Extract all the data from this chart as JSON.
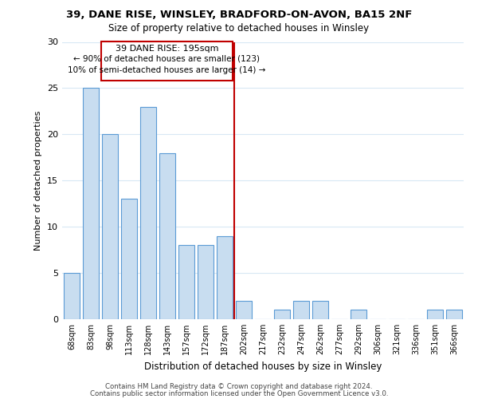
{
  "title1": "39, DANE RISE, WINSLEY, BRADFORD-ON-AVON, BA15 2NF",
  "title2": "Size of property relative to detached houses in Winsley",
  "xlabel": "Distribution of detached houses by size in Winsley",
  "ylabel": "Number of detached properties",
  "bar_labels": [
    "68sqm",
    "83sqm",
    "98sqm",
    "113sqm",
    "128sqm",
    "143sqm",
    "157sqm",
    "172sqm",
    "187sqm",
    "202sqm",
    "217sqm",
    "232sqm",
    "247sqm",
    "262sqm",
    "277sqm",
    "292sqm",
    "306sqm",
    "321sqm",
    "336sqm",
    "351sqm",
    "366sqm"
  ],
  "bar_values": [
    5,
    25,
    20,
    13,
    23,
    18,
    8,
    8,
    9,
    2,
    0,
    1,
    2,
    2,
    0,
    1,
    0,
    0,
    0,
    1,
    1
  ],
  "bar_color": "#c8ddf0",
  "bar_edge_color": "#5b9bd5",
  "annotation_box_edge": "#c00000",
  "reference_line_label": "39 DANE RISE: 195sqm",
  "annotation_line1": "← 90% of detached houses are smaller (123)",
  "annotation_line2": "10% of semi-detached houses are larger (14) →",
  "ylim": [
    0,
    30
  ],
  "yticks": [
    0,
    5,
    10,
    15,
    20,
    25,
    30
  ],
  "footer1": "Contains HM Land Registry data © Crown copyright and database right 2024.",
  "footer2": "Contains public sector information licensed under the Open Government Licence v3.0.",
  "bg_color": "#ffffff",
  "grid_color": "#d8e8f4"
}
